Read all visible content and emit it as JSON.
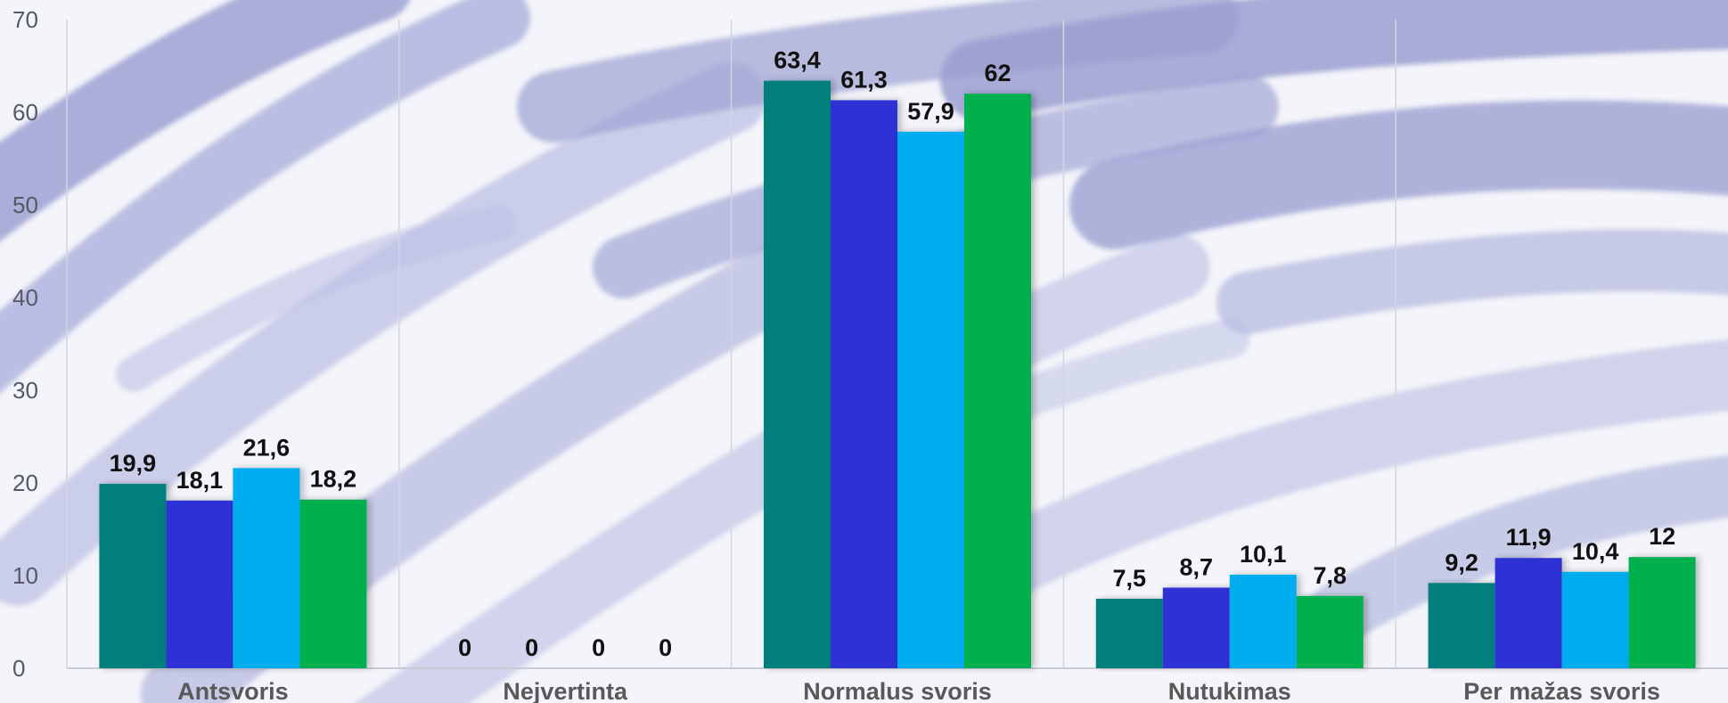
{
  "chart_data": {
    "type": "bar",
    "categories": [
      "Antsvoris",
      "Nejvertinta",
      "Normalus svoris",
      "Nutukimas",
      "Per mažas svoris"
    ],
    "series": [
      {
        "values": [
          19.9,
          0,
          63.4,
          7.5,
          9.2
        ],
        "labels": [
          "19,9",
          "0",
          "63,4",
          "7,5",
          "9,2"
        ],
        "color": "#007f7b"
      },
      {
        "values": [
          18.1,
          0,
          61.3,
          8.7,
          11.9
        ],
        "labels": [
          "18,1",
          "0",
          "61,3",
          "8,7",
          "11,9"
        ],
        "color": "#2e31d4"
      },
      {
        "values": [
          21.6,
          0,
          57.9,
          10.1,
          10.4
        ],
        "labels": [
          "21,6",
          "0",
          "57,9",
          "10,1",
          "10,4"
        ],
        "color": "#00aeef"
      },
      {
        "values": [
          18.2,
          0,
          62,
          7.8,
          12
        ],
        "labels": [
          "18,2",
          "0",
          "62",
          "7,8",
          "12"
        ],
        "color": "#00b050"
      }
    ],
    "yticks": [
      0,
      10,
      20,
      30,
      40,
      50,
      60,
      70
    ],
    "ylim": [
      0,
      70
    ],
    "title": "",
    "xlabel": "",
    "ylabel": "",
    "grid": "vertical category separators",
    "legend": "none"
  }
}
